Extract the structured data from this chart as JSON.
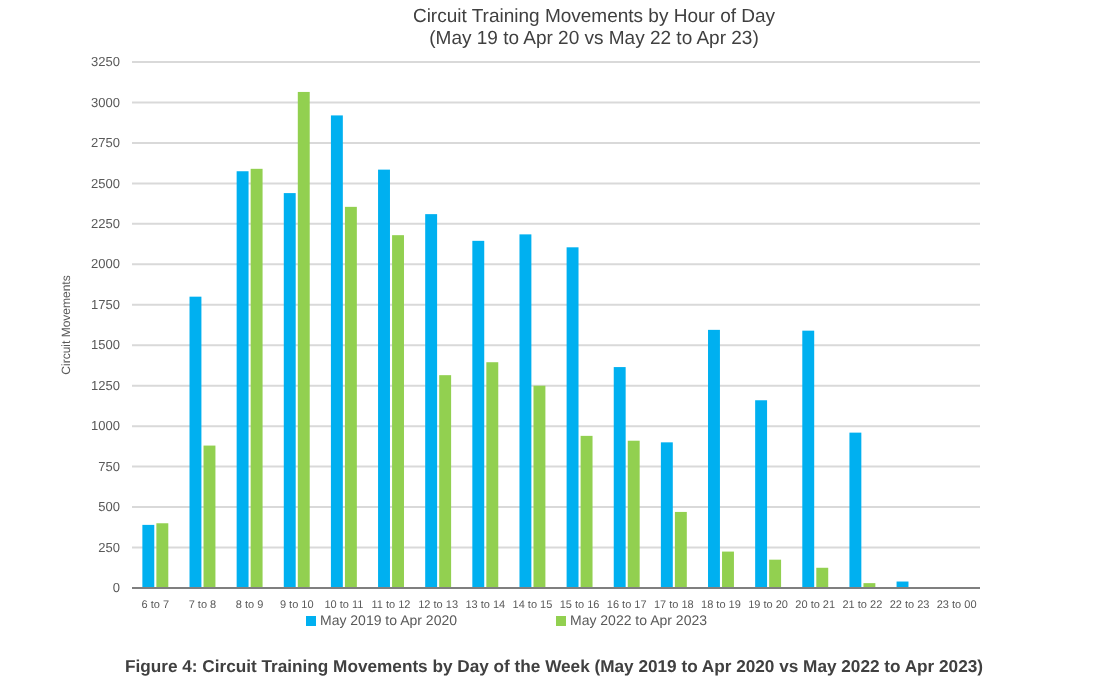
{
  "chart_data": {
    "type": "bar",
    "title": "Circuit Training Movements by Hour of Day",
    "subtitle": "(May 19 to Apr 20 vs May 22 to Apr 23)",
    "ylabel": "Circuit Movements",
    "categories": [
      "6 to 7",
      "7 to 8",
      "8 to 9",
      "9 to 10",
      "10 to 11",
      "11 to 12",
      "12 to 13",
      "13 to 14",
      "14 to 15",
      "15 to 16",
      "16 to 17",
      "17 to 18",
      "18 to 19",
      "19 to 20",
      "20 to 21",
      "21 to 22",
      "22 to 23",
      "23 to 00"
    ],
    "series": [
      {
        "name": "May 2019 to Apr 2020",
        "color": "#00b0f0",
        "values": [
          390,
          1800,
          2575,
          2440,
          2920,
          2585,
          2310,
          2145,
          2185,
          2105,
          1365,
          900,
          1595,
          1160,
          1590,
          960,
          40,
          null
        ]
      },
      {
        "name": "May 2022 to Apr 2023",
        "color": "#92d050",
        "values": [
          400,
          880,
          2590,
          3065,
          2355,
          2180,
          1315,
          1395,
          1250,
          940,
          910,
          470,
          225,
          175,
          125,
          30,
          0,
          0
        ]
      }
    ],
    "ylim": [
      0,
      3250
    ],
    "yticks": [
      0,
      250,
      500,
      750,
      1000,
      1250,
      1500,
      1750,
      2000,
      2250,
      2500,
      2750,
      3000,
      3250
    ],
    "grid": "y",
    "legend": "bottom",
    "annotations": [
      "Figure 4: Circuit Training Movements by Day of the Week (May 2019 to Apr 2020 vs May 2022 to Apr 2023)"
    ]
  }
}
